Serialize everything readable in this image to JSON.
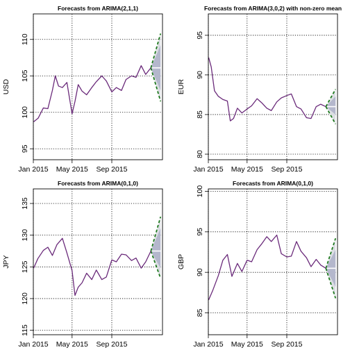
{
  "chart_data": [
    {
      "type": "line",
      "title": "Forecasts from ARIMA(2,1,1)",
      "ylabel": "USD",
      "xlim": [
        "2015-01-01",
        "2016-02-05"
      ],
      "ylim": [
        93.5,
        113.5
      ],
      "x_ticks": [
        {
          "date": "2015-01-01",
          "label": "Jan 2015"
        },
        {
          "date": "2015-05-01",
          "label": "May 2015"
        },
        {
          "date": "2015-09-01",
          "label": "Sep 2015"
        }
      ],
      "y_ticks": [
        95,
        100,
        105,
        110
      ],
      "grid": true,
      "history": {
        "x": [
          "2015-01-02",
          "2015-01-16",
          "2015-02-01",
          "2015-02-15",
          "2015-03-01",
          "2015-03-10",
          "2015-03-20",
          "2015-04-01",
          "2015-04-15",
          "2015-05-01",
          "2015-05-10",
          "2015-05-20",
          "2015-06-01",
          "2015-06-15",
          "2015-07-01",
          "2015-07-15",
          "2015-08-01",
          "2015-08-15",
          "2015-09-01",
          "2015-09-15",
          "2015-10-01",
          "2015-10-15",
          "2015-11-01",
          "2015-11-15",
          "2015-12-01",
          "2015-12-15",
          "2015-12-31"
        ],
        "y": [
          98.7,
          99.2,
          100.6,
          100.5,
          103.0,
          105.0,
          103.6,
          103.4,
          104.1,
          99.8,
          101.5,
          103.8,
          102.9,
          102.4,
          103.4,
          104.2,
          105.0,
          104.3,
          102.8,
          103.4,
          103.0,
          104.5,
          105.0,
          104.8,
          106.4,
          105.2,
          106.1
        ]
      },
      "forecast": {
        "x": [
          "2015-12-31",
          "2016-01-30"
        ],
        "point": [
          106.1,
          106.1
        ],
        "lo80": [
          106.1,
          103.0
        ],
        "hi80": [
          106.1,
          109.2
        ],
        "lo95": [
          106.1,
          101.5
        ],
        "hi95": [
          106.1,
          110.8
        ]
      }
    },
    {
      "type": "line",
      "title": "Forecasts from ARIMA(3,0,2) with non-zero mean",
      "ylabel": "EUR",
      "xlim": [
        "2015-01-01",
        "2016-02-05"
      ],
      "ylim": [
        79.3,
        97.7
      ],
      "x_ticks": [
        {
          "date": "2015-01-01",
          "label": "Jan 2015"
        },
        {
          "date": "2015-05-01",
          "label": "May 2015"
        },
        {
          "date": "2015-09-01",
          "label": "Sep 2015"
        }
      ],
      "y_ticks": [
        80,
        85,
        90,
        95
      ],
      "grid": true,
      "history": {
        "x": [
          "2015-01-02",
          "2015-01-10",
          "2015-01-20",
          "2015-02-01",
          "2015-02-15",
          "2015-03-01",
          "2015-03-10",
          "2015-03-20",
          "2015-04-01",
          "2015-04-15",
          "2015-05-01",
          "2015-05-15",
          "2015-06-01",
          "2015-06-15",
          "2015-07-01",
          "2015-07-15",
          "2015-08-01",
          "2015-08-15",
          "2015-09-01",
          "2015-09-15",
          "2015-10-01",
          "2015-10-15",
          "2015-11-01",
          "2015-11-15",
          "2015-12-01",
          "2015-12-15",
          "2015-12-31"
        ],
        "y": [
          92.2,
          91.0,
          88.0,
          87.3,
          86.9,
          86.7,
          84.2,
          84.5,
          85.8,
          85.2,
          85.7,
          86.1,
          87.0,
          86.5,
          85.8,
          85.5,
          86.6,
          87.1,
          87.4,
          87.6,
          86.0,
          85.7,
          84.6,
          84.5,
          86.0,
          86.3,
          86.0
        ]
      },
      "forecast": {
        "x": [
          "2015-12-31",
          "2016-01-30"
        ],
        "point": [
          86.0,
          86.0
        ],
        "lo80": [
          86.0,
          85.0
        ],
        "hi80": [
          86.0,
          87.3
        ],
        "lo95": [
          86.0,
          83.8
        ],
        "hi95": [
          86.0,
          88.2
        ]
      }
    },
    {
      "type": "line",
      "title": "Forecasts from ARIMA(0,1,0)",
      "ylabel": "JPY",
      "xlim": [
        "2015-01-01",
        "2016-02-05"
      ],
      "ylim": [
        114.3,
        137.3
      ],
      "x_ticks": [
        {
          "date": "2015-01-01",
          "label": "Jan 2015"
        },
        {
          "date": "2015-05-01",
          "label": "May 2015"
        },
        {
          "date": "2015-09-01",
          "label": "Sep 2015"
        }
      ],
      "y_ticks": [
        115,
        120,
        125,
        130,
        135
      ],
      "grid": true,
      "history": {
        "x": [
          "2015-01-02",
          "2015-01-15",
          "2015-02-01",
          "2015-02-15",
          "2015-03-01",
          "2015-03-15",
          "2015-04-01",
          "2015-04-15",
          "2015-05-01",
          "2015-05-10",
          "2015-05-20",
          "2015-06-01",
          "2015-06-15",
          "2015-07-01",
          "2015-07-15",
          "2015-08-01",
          "2015-08-15",
          "2015-09-01",
          "2015-09-15",
          "2015-10-01",
          "2015-10-15",
          "2015-11-01",
          "2015-11-15",
          "2015-12-01",
          "2015-12-15",
          "2015-12-31"
        ],
        "y": [
          124.8,
          126.3,
          127.6,
          128.1,
          126.8,
          128.5,
          129.5,
          127.2,
          124.4,
          120.5,
          121.8,
          122.5,
          124.0,
          123.0,
          124.5,
          123.0,
          123.4,
          126.1,
          125.8,
          127.0,
          126.9,
          126.0,
          126.4,
          124.8,
          125.8,
          127.5
        ]
      },
      "forecast": {
        "x": [
          "2015-12-31",
          "2016-01-30"
        ],
        "point": [
          127.5,
          127.5
        ],
        "lo80": [
          127.5,
          124.8
        ],
        "hi80": [
          127.5,
          131.1
        ],
        "lo95": [
          127.5,
          123.2
        ],
        "hi95": [
          127.5,
          132.9
        ]
      }
    },
    {
      "type": "line",
      "title": "Forecasts from ARIMA(0,1,0)",
      "ylabel": "GBP",
      "xlim": [
        "2015-01-01",
        "2016-02-05"
      ],
      "ylim": [
        82.3,
        100.3
      ],
      "x_ticks": [
        {
          "date": "2015-01-01",
          "label": "Jan 2015"
        },
        {
          "date": "2015-05-01",
          "label": "May 2015"
        },
        {
          "date": "2015-09-01",
          "label": "Sep 2015"
        }
      ],
      "y_ticks": [
        85,
        90,
        95,
        100
      ],
      "grid": true,
      "history": {
        "x": [
          "2015-01-02",
          "2015-01-15",
          "2015-02-01",
          "2015-02-15",
          "2015-03-01",
          "2015-03-15",
          "2015-04-01",
          "2015-04-15",
          "2015-05-01",
          "2015-05-15",
          "2015-06-01",
          "2015-06-15",
          "2015-07-01",
          "2015-07-15",
          "2015-08-01",
          "2015-08-15",
          "2015-09-01",
          "2015-09-15",
          "2015-10-01",
          "2015-10-15",
          "2015-11-01",
          "2015-11-15",
          "2015-12-01",
          "2015-12-15",
          "2015-12-31"
        ],
        "y": [
          86.6,
          87.8,
          89.6,
          91.5,
          92.2,
          89.5,
          91.1,
          90.1,
          91.5,
          91.3,
          92.8,
          93.5,
          94.4,
          93.8,
          94.6,
          92.3,
          91.9,
          92.0,
          93.8,
          92.6,
          91.8,
          90.7,
          91.6,
          90.9,
          90.5
        ]
      },
      "forecast": {
        "x": [
          "2015-12-31",
          "2016-01-30"
        ],
        "point": [
          90.5,
          90.5
        ],
        "lo80": [
          90.5,
          88.2
        ],
        "hi80": [
          90.5,
          92.8
        ],
        "lo95": [
          90.5,
          86.8
        ],
        "hi95": [
          90.5,
          94.2
        ]
      }
    }
  ],
  "colors": {
    "series": "#6a2a7a",
    "forecast_point": "#ffffff",
    "band80": "#b4b7cc",
    "band95": "#dcdee3",
    "interval_line": "#1e7a1e",
    "grid": "#000000"
  }
}
